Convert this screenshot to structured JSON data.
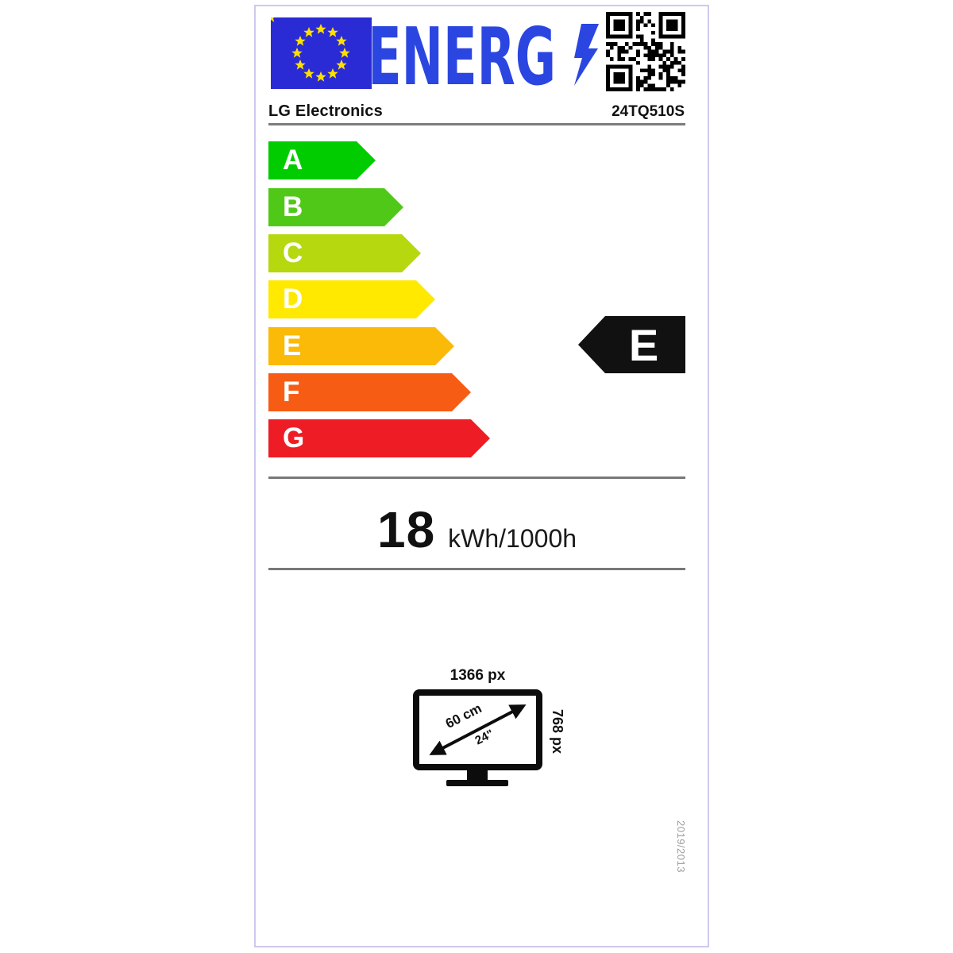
{
  "label": {
    "header": {
      "wordmark": "ENERG",
      "wordmark_color": "#2b46e0",
      "eu_flag_color": "#2b2bd5",
      "star_color": "#ffdf00",
      "brand": "LG Electronics",
      "model": "24TQ510S"
    },
    "scale": {
      "grades": [
        {
          "letter": "A",
          "color": "#00cc00"
        },
        {
          "letter": "B",
          "color": "#50c818"
        },
        {
          "letter": "C",
          "color": "#b5d80e"
        },
        {
          "letter": "D",
          "color": "#ffe900"
        },
        {
          "letter": "E",
          "color": "#fbba07"
        },
        {
          "letter": "F",
          "color": "#f75c14"
        },
        {
          "letter": "G",
          "color": "#ee1c25"
        }
      ]
    },
    "rating": {
      "grade": "E",
      "arrow_color": "#111111"
    },
    "consumption": {
      "value": "18",
      "unit": "kWh/1000h"
    },
    "screen": {
      "horizontal_resolution": "1366 px",
      "vertical_resolution": "768 px",
      "diagonal_cm": "60 cm",
      "diagonal_inches": "24\""
    },
    "regulation_number": "2019/2013"
  }
}
